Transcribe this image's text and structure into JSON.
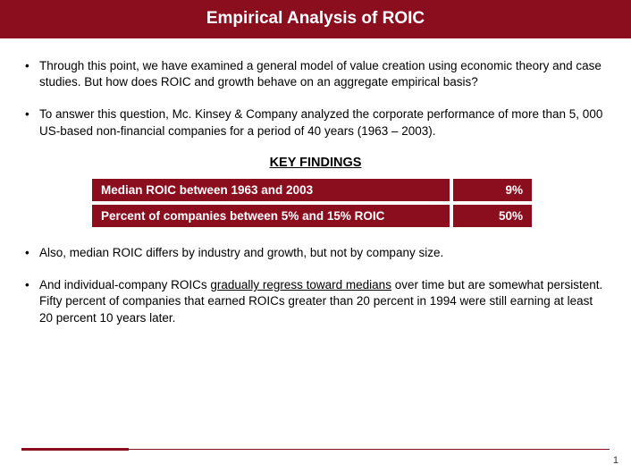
{
  "title": "Empirical Analysis of ROIC",
  "bullets": {
    "b1": "Through this point, we have examined a general model of value creation using economic theory and case studies.  But how does ROIC and growth behave on an aggregate empirical basis?",
    "b2": "To answer this question, Mc. Kinsey & Company analyzed the corporate performance of more than 5, 000 US-based non-financial companies for a period of 40 years (1963 – 2003).",
    "b3": "Also, median ROIC differs by industry and growth, but not by company size.",
    "b4_pre": "And individual-company ROICs ",
    "b4_u": "gradually regress toward medians",
    "b4_post": " over time but are somewhat persistent.  Fifty percent of companies that earned ROICs greater than 20 percent in 1994 were still earning at least 20 percent 10 years later."
  },
  "key_findings_heading": "KEY FINDINGS",
  "findings": [
    {
      "label": "Median ROIC between 1963 and 2003",
      "value": "9%"
    },
    {
      "label": "Percent of companies between 5% and 15% ROIC",
      "value": "50%"
    }
  ],
  "page_number": "1",
  "colors": {
    "brand": "#8a0e1e",
    "text": "#000000",
    "bg": "#ffffff"
  }
}
